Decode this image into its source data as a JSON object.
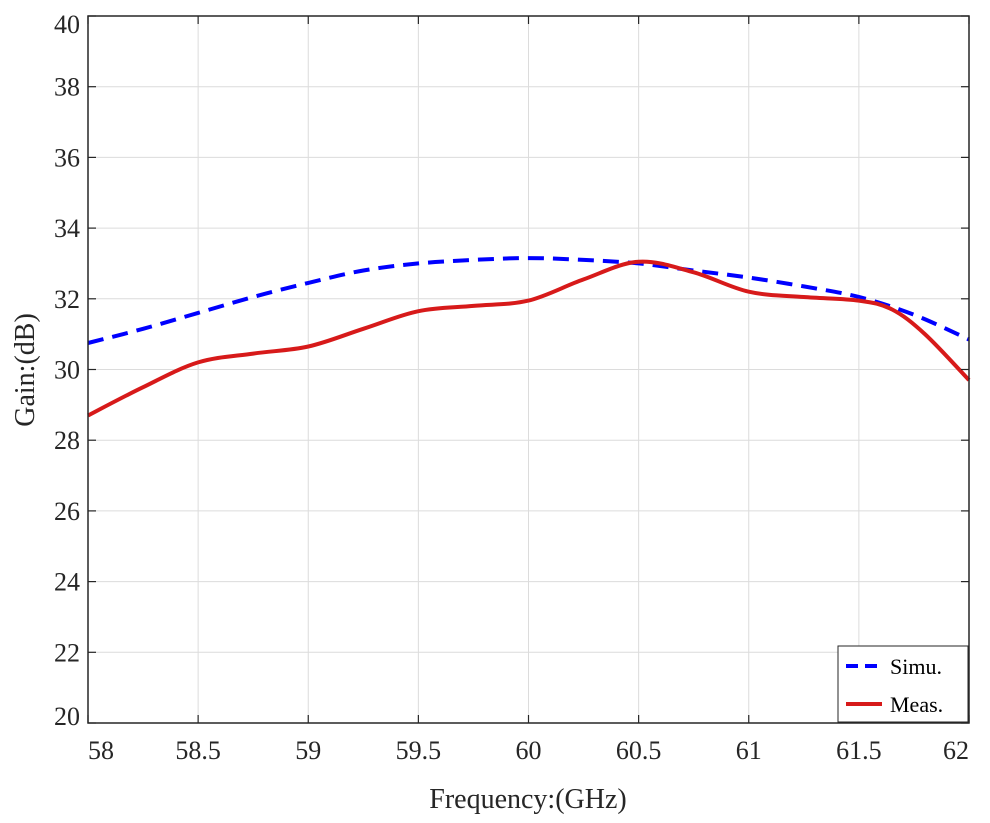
{
  "chart_data": {
    "type": "line",
    "title": "",
    "xlabel": "Frequency:(GHz)",
    "ylabel": "Gain:(dB)",
    "xlim": [
      58,
      62
    ],
    "ylim": [
      20,
      40
    ],
    "xticks": [
      58,
      58.5,
      59,
      59.5,
      60,
      60.5,
      61,
      61.5,
      62
    ],
    "xtick_labels": [
      "58",
      "58.5",
      "59",
      "59.5",
      "60",
      "60.5",
      "61",
      "61.5",
      "62"
    ],
    "yticks": [
      20,
      22,
      24,
      26,
      28,
      30,
      32,
      34,
      36,
      38,
      40
    ],
    "ytick_labels": [
      "20",
      "22",
      "24",
      "26",
      "28",
      "30",
      "32",
      "34",
      "36",
      "38",
      "40"
    ],
    "grid": true,
    "legend_position": "bottom-right",
    "series": [
      {
        "name": "Simu.",
        "color": "#0000ff",
        "style": "dashed",
        "x": [
          58,
          58.25,
          58.5,
          58.75,
          59,
          59.25,
          59.5,
          59.75,
          60,
          60.25,
          60.5,
          60.75,
          61,
          61.25,
          61.5,
          61.75,
          62
        ],
        "y": [
          30.75,
          31.15,
          31.6,
          32.05,
          32.45,
          32.8,
          33.0,
          33.1,
          33.15,
          33.1,
          33.0,
          32.8,
          32.6,
          32.35,
          32.05,
          31.55,
          30.85
        ]
      },
      {
        "name": "Meas.",
        "color": "#d71a1a",
        "style": "solid",
        "x": [
          58,
          58.25,
          58.5,
          58.75,
          59,
          59.25,
          59.5,
          59.75,
          60,
          60.25,
          60.5,
          60.75,
          61,
          61.25,
          61.5,
          61.65,
          61.8,
          62
        ],
        "y": [
          28.7,
          29.5,
          30.2,
          30.45,
          30.65,
          31.15,
          31.65,
          31.8,
          31.95,
          32.55,
          33.05,
          32.75,
          32.2,
          32.05,
          31.95,
          31.7,
          31.0,
          29.7
        ]
      }
    ]
  }
}
